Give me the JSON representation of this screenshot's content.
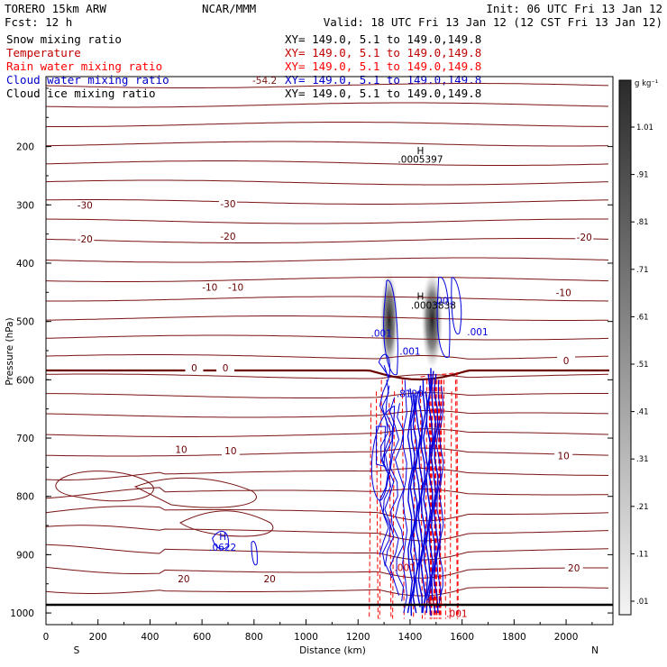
{
  "header": {
    "model": "TORERO  15km ARW",
    "center": "NCAR/MMM",
    "init": "Init: 06 UTC Fri 13 Jan 12",
    "fcst": "Fcst:   12 h",
    "valid": "Valid: 18 UTC Fri 13 Jan 12 (12 CST Fri 13 Jan 12)"
  },
  "legend": [
    {
      "name": "Snow mixing ratio",
      "xy": "",
      "color": "#000000"
    },
    {
      "name": "Temperature",
      "xy": "XY= 149.0,  5.1 to 149.0,149.8",
      "color": "#c00000"
    },
    {
      "name": "Rain water mixing ratio",
      "xy": "XY= 149.0,  5.1 to 149.0,149.8",
      "color": "#ff0000"
    },
    {
      "name": "Cloud water mixing ratio",
      "xy": "XY= 149.0,  5.1 to 149.0,149.8",
      "color": "#0000cc"
    },
    {
      "name": "Cloud ice mixing ratio",
      "xy": "XY= 149.0,  5.1 to 149.0,149.8",
      "color": "#000000"
    }
  ],
  "first_xy": "XY= 149.0,  5.1 to 149.0,149.8",
  "top_label": "-54.2",
  "colors": {
    "temperature": "#7a1414",
    "zero_isotherm": "#6b0000",
    "rain": "#ff0000",
    "cloud_water": "#0000dd",
    "ground": "#000000"
  },
  "chart_data": {
    "type": "cross-section",
    "ylabel": "Pressure (hPa)",
    "xlabel": "Distance (km)",
    "x_end_labels": [
      "S",
      "N"
    ],
    "xlim": [
      0,
      2180
    ],
    "ylim": [
      1020,
      80
    ],
    "x_ticks": [
      "0",
      "200",
      "400",
      "600",
      "800",
      "1000",
      "1200",
      "1400",
      "1600",
      "1800",
      "2000"
    ],
    "y_ticks": [
      "200",
      "300",
      "400",
      "500",
      "600",
      "700",
      "800",
      "900",
      "1000"
    ],
    "colorbar": {
      "units": "g kg⁻¹",
      "labels": [
        "1.01",
        ".91",
        ".81",
        ".71",
        ".61",
        ".51",
        ".41",
        ".31",
        ".21",
        ".11",
        ".01"
      ]
    },
    "temperature_contour_labels": [
      {
        "text": "-30",
        "x": 150,
        "p": 305
      },
      {
        "text": "-30",
        "x": 700,
        "p": 303
      },
      {
        "text": "-20",
        "x": 150,
        "p": 363
      },
      {
        "text": "-20",
        "x": 700,
        "p": 358
      },
      {
        "text": "-20",
        "x": 2070,
        "p": 360
      },
      {
        "text": "-10",
        "x": 630,
        "p": 446
      },
      {
        "text": "-10",
        "x": 730,
        "p": 446
      },
      {
        "text": "-10",
        "x": 1990,
        "p": 455
      },
      {
        "text": "0",
        "x": 570,
        "p": 584
      },
      {
        "text": "0",
        "x": 690,
        "p": 584
      },
      {
        "text": "0",
        "x": 2000,
        "p": 572
      },
      {
        "text": "10",
        "x": 520,
        "p": 724
      },
      {
        "text": "10",
        "x": 710,
        "p": 726
      },
      {
        "text": "10",
        "x": 1990,
        "p": 735
      },
      {
        "text": "20",
        "x": 530,
        "p": 946
      },
      {
        "text": "20",
        "x": 860,
        "p": 946
      },
      {
        "text": "20",
        "x": 2030,
        "p": 927
      }
    ],
    "other_labels": [
      {
        "text": "H",
        "x": 1440,
        "p": 213,
        "color": "#000000"
      },
      {
        "text": ".0005397",
        "x": 1440,
        "p": 228,
        "color": "#000000"
      },
      {
        "text": "H",
        "x": 1440,
        "p": 463,
        "color": "#000000"
      },
      {
        "text": ".0003838",
        "x": 1490,
        "p": 478,
        "color": "#000000"
      },
      {
        "text": ".001",
        "x": 1530,
        "p": 470,
        "color": "#0000dd"
      },
      {
        "text": ".001",
        "x": 1290,
        "p": 526,
        "color": "#0000dd"
      },
      {
        "text": ".001",
        "x": 1400,
        "p": 557,
        "color": "#0000dd"
      },
      {
        "text": ".001",
        "x": 1660,
        "p": 524,
        "color": "#0000dd"
      },
      {
        "text": ".8129",
        "x": 1400,
        "p": 630,
        "color": "#0000dd"
      },
      {
        "text": "H",
        "x": 680,
        "p": 875,
        "color": "#0000dd"
      },
      {
        "text": ".0622",
        "x": 680,
        "p": 893,
        "color": "#0000dd"
      },
      {
        "text": ".001",
        "x": 1380,
        "p": 928,
        "color": "#cc0000"
      },
      {
        "text": ".401",
        "x": 1490,
        "p": 985,
        "color": "#cc0000"
      },
      {
        "text": ".001",
        "x": 1580,
        "p": 1007,
        "color": "#cc0000"
      }
    ]
  }
}
